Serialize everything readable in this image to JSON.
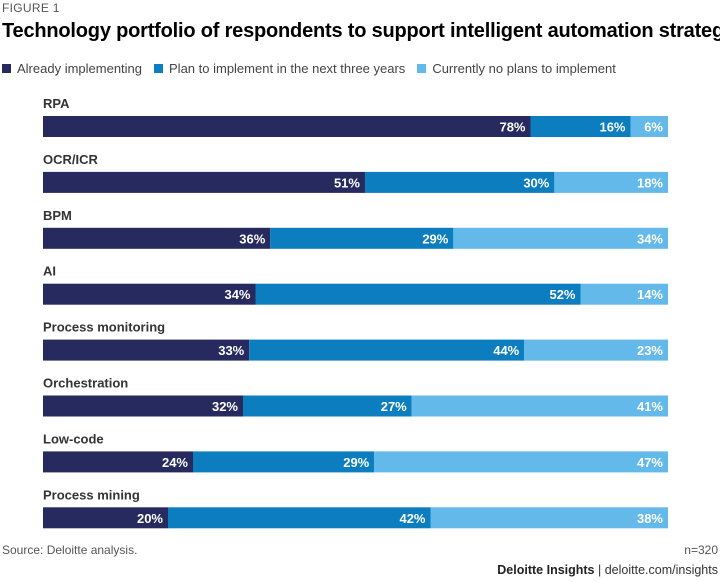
{
  "figure_label": "FIGURE 1",
  "chart_data": {
    "type": "bar",
    "orientation": "horizontal",
    "stacked": true,
    "title": "Technology portfolio of respondents to support intelligent automation strategy",
    "categories": [
      "RPA",
      "OCR/ICR",
      "BPM",
      "AI",
      "Process monitoring",
      "Orchestration",
      "Low-code",
      "Process mining"
    ],
    "series": [
      {
        "name": "Already implementing",
        "color": "#262a5e",
        "values": [
          78,
          51,
          36,
          34,
          33,
          32,
          24,
          20
        ]
      },
      {
        "name": "Plan to implement in the next three years",
        "color": "#0c7ebf",
        "values": [
          16,
          30,
          29,
          52,
          44,
          27,
          29,
          42
        ]
      },
      {
        "name": "Currently no plans to implement",
        "color": "#62b9ea",
        "values": [
          6,
          18,
          34,
          14,
          23,
          41,
          47,
          38
        ]
      }
    ],
    "value_suffix": "%",
    "legend_position": "top-left"
  },
  "source": "Source: Deloitte analysis.",
  "sample": "n=320",
  "footer": {
    "brand": "Deloitte Insights",
    "separator": "|",
    "url": "deloitte.com/insights"
  }
}
